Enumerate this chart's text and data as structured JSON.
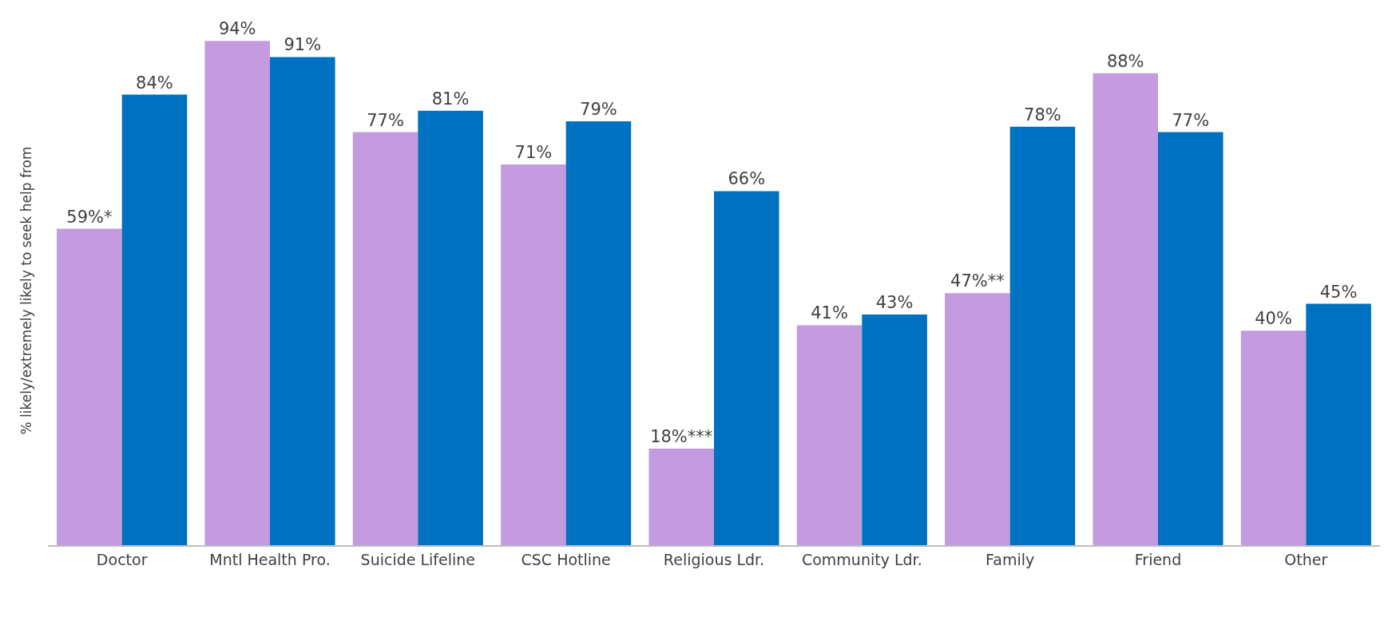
{
  "chart_data": {
    "type": "bar",
    "ylabel": "% likely/extremely likely to seek help from",
    "categories": [
      "Doctor",
      "Mntl Health Pro.",
      "Suicide Lifeline",
      "CSC Hotline",
      "Religious Ldr.",
      "Community Ldr.",
      "Family",
      "Friend",
      "Other"
    ],
    "series": [
      {
        "color": "#c39bde",
        "values": [
          59,
          94,
          77,
          71,
          18,
          41,
          47,
          88,
          40
        ],
        "value_labels": [
          "59%*",
          "94%",
          "77%",
          "71%",
          "18%***",
          "41%",
          "47%**",
          "88%",
          "40%"
        ]
      },
      {
        "color": "#0070c0",
        "values": [
          84,
          91,
          81,
          79,
          66,
          43,
          78,
          77,
          45
        ],
        "value_labels": [
          "84%",
          "91%",
          "81%",
          "79%",
          "66%",
          "43%",
          "78%",
          "77%",
          "45%"
        ]
      }
    ]
  }
}
